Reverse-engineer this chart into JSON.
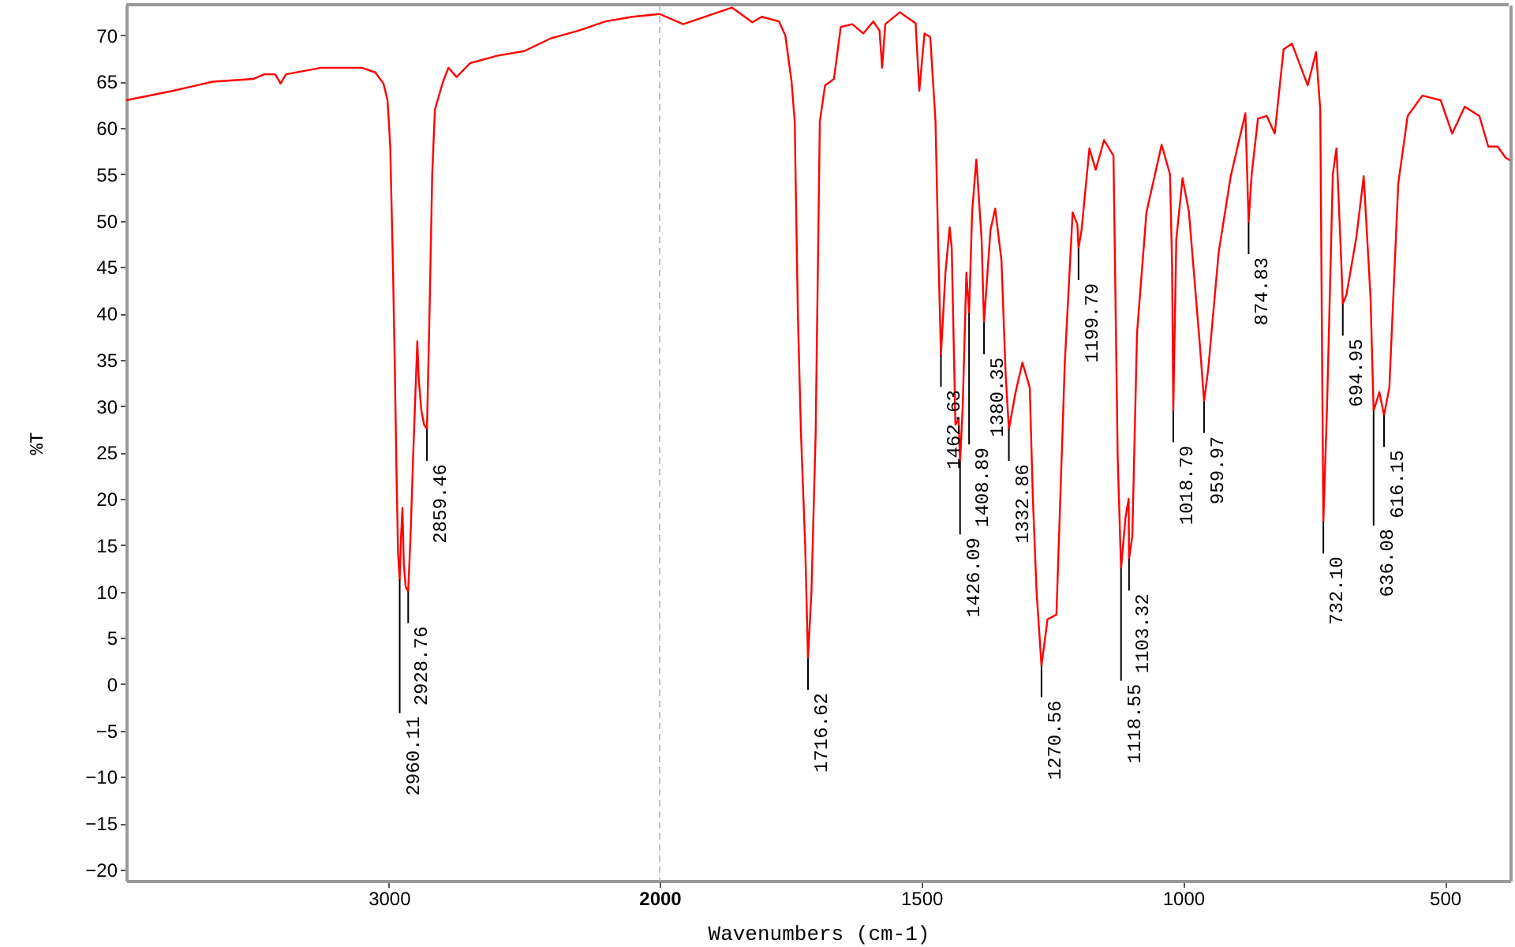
{
  "chart_data": [
    {
      "type": "line",
      "ylabel": "%T",
      "color": "#ff0000",
      "xlim": [
        3970,
        2000
      ],
      "ylim": [
        -21.2,
        73.3
      ],
      "xticks": [
        3000,
        2000
      ],
      "yticks": [
        -20,
        -15,
        -10,
        -5,
        0,
        5,
        10,
        15,
        20,
        25,
        30,
        35,
        40,
        45,
        50,
        55,
        60,
        65,
        70
      ],
      "ref_lines": [
        {
          "axis": "x",
          "value": 2000,
          "line_style": "dashed",
          "color": "#c0c0c0"
        }
      ],
      "x": [
        3970,
        3800,
        3650,
        3500,
        3460,
        3420,
        3400,
        3380,
        3250,
        3100,
        3050,
        3020,
        3005,
        2995,
        2985,
        2978,
        2972,
        2966,
        2960.11,
        2955,
        2950,
        2945,
        2938,
        2928.76,
        2920,
        2910,
        2895,
        2890,
        2880,
        2870,
        2859.46,
        2850,
        2840,
        2830,
        2800,
        2780,
        2750,
        2700,
        2600,
        2500,
        2400,
        2300,
        2200,
        2100,
        2000
      ],
      "values": [
        63.0,
        64.0,
        65.0,
        65.3,
        65.8,
        65.8,
        64.8,
        65.8,
        66.5,
        66.5,
        66.0,
        64.8,
        63.0,
        58.0,
        45.0,
        34.0,
        23.0,
        14.0,
        11.3,
        16.0,
        19.0,
        13.0,
        10.5,
        10.0,
        16.0,
        25.0,
        37.0,
        33.0,
        29.5,
        28.0,
        27.5,
        40.0,
        55.0,
        62.0,
        65.0,
        66.5,
        65.5,
        67.0,
        67.8,
        68.3,
        69.7,
        70.5,
        71.5,
        72.0,
        72.3
      ],
      "annotations": [
        {
          "text": "2960.11",
          "x": 2960.11,
          "y": 11.3
        },
        {
          "text": "2928.76",
          "x": 2928.76,
          "y": 10.0
        },
        {
          "text": "2859.46",
          "x": 2859.46,
          "y": 27.5
        }
      ]
    },
    {
      "type": "line",
      "xlabel": "Wavenumbers (cm-1)",
      "color": "#ff0000",
      "xlim": [
        2000,
        375
      ],
      "ylim": [
        -21.2,
        73.3
      ],
      "tick_labels": "x",
      "xticks": [
        {
          "value": 2000,
          "label": null
        },
        1500,
        1000,
        500
      ],
      "x": [
        2000,
        1955,
        1862,
        1823,
        1805,
        1772,
        1760,
        1748,
        1742,
        1736,
        1730,
        1722,
        1716.62,
        1710,
        1702,
        1694,
        1684,
        1667,
        1654,
        1632,
        1611,
        1592,
        1580,
        1575,
        1569,
        1541,
        1529,
        1511,
        1504,
        1494,
        1483,
        1473,
        1468,
        1462.63,
        1454,
        1446,
        1442,
        1435,
        1429,
        1426.09,
        1421,
        1414,
        1408.89,
        1403,
        1395,
        1385,
        1380.35,
        1368,
        1359,
        1347,
        1339,
        1332.86,
        1320,
        1307,
        1293,
        1287,
        1280,
        1270.56,
        1259,
        1242,
        1226,
        1211,
        1202,
        1199.79,
        1194,
        1179,
        1167,
        1151,
        1133,
        1125,
        1118.55,
        1110,
        1104,
        1103.32,
        1097,
        1088,
        1070,
        1041,
        1025,
        1021,
        1018.79,
        1013,
        1001,
        989,
        967,
        959.97,
        952,
        932,
        909,
        881,
        874.83,
        869,
        857,
        840,
        825,
        808,
        792,
        762,
        746,
        738,
        732.1,
        725,
        714,
        707,
        697,
        694.95,
        688,
        669,
        655,
        642,
        636.08,
        625,
        616.15,
        606,
        589,
        571,
        543,
        508,
        486,
        462,
        434,
        417,
        399,
        384,
        375
      ],
      "values": [
        72.3,
        71.2,
        73.0,
        71.4,
        72.0,
        71.5,
        70.0,
        65.0,
        60.7,
        40.0,
        27.0,
        15.0,
        2.8,
        10.0,
        27.0,
        60.7,
        64.6,
        65.3,
        70.9,
        71.2,
        70.2,
        71.5,
        70.5,
        66.5,
        71.2,
        72.5,
        72.0,
        71.3,
        64.0,
        70.2,
        69.8,
        60.7,
        47.6,
        35.5,
        44.4,
        49.3,
        47.0,
        28.0,
        28.6,
        24.0,
        30.0,
        44.4,
        40.0,
        51.0,
        56.6,
        48.0,
        39.0,
        49.0,
        51.3,
        45.7,
        33.4,
        27.5,
        31.5,
        34.7,
        32.0,
        20.0,
        10.0,
        2.0,
        7.0,
        7.5,
        34.7,
        50.9,
        49.6,
        47.0,
        49.0,
        57.8,
        55.5,
        58.7,
        57.0,
        24.5,
        12.5,
        18.0,
        20.0,
        13.5,
        16.0,
        37.9,
        50.9,
        58.2,
        55.0,
        45.0,
        29.5,
        48.0,
        54.6,
        51.0,
        35.9,
        30.5,
        34.0,
        46.6,
        54.8,
        61.6,
        49.8,
        55.0,
        61.0,
        61.3,
        59.4,
        68.5,
        69.1,
        64.6,
        68.2,
        62.0,
        17.5,
        30.0,
        55.0,
        57.8,
        44.4,
        41.0,
        42.0,
        48.2,
        54.8,
        41.8,
        29.5,
        31.5,
        29.0,
        32.0,
        54.0,
        61.3,
        63.5,
        63.0,
        59.4,
        62.3,
        61.3,
        58.0,
        58.0,
        56.8,
        56.5
      ],
      "annotations": [
        {
          "text": "1716.62",
          "x": 1716.62,
          "y": 2.8
        },
        {
          "text": "1462.63",
          "x": 1462.63,
          "y": 35.5
        },
        {
          "text": "1426.09",
          "x": 1426.09,
          "y": 24.0
        },
        {
          "text": "1408.89",
          "x": 1408.89,
          "y": 40.0
        },
        {
          "text": "1380.35",
          "x": 1380.35,
          "y": 39.0
        },
        {
          "text": "1332.86",
          "x": 1332.86,
          "y": 27.5
        },
        {
          "text": "1270.56",
          "x": 1270.56,
          "y": 2.0
        },
        {
          "text": "1199.79",
          "x": 1199.79,
          "y": 47.0
        },
        {
          "text": "1118.55",
          "x": 1118.55,
          "y": 12.5
        },
        {
          "text": "1103.32",
          "x": 1103.32,
          "y": 13.5
        },
        {
          "text": "1018.79",
          "x": 1018.79,
          "y": 29.5
        },
        {
          "text": "959.97",
          "x": 959.97,
          "y": 30.5
        },
        {
          "text": "874.83",
          "x": 874.83,
          "y": 49.8
        },
        {
          "text": "732.10",
          "x": 732.1,
          "y": 17.5
        },
        {
          "text": "694.95",
          "x": 694.95,
          "y": 41.0
        },
        {
          "text": "636.08",
          "x": 636.08,
          "y": 29.5
        },
        {
          "text": "616.15",
          "x": 616.15,
          "y": 29.0
        }
      ]
    }
  ]
}
